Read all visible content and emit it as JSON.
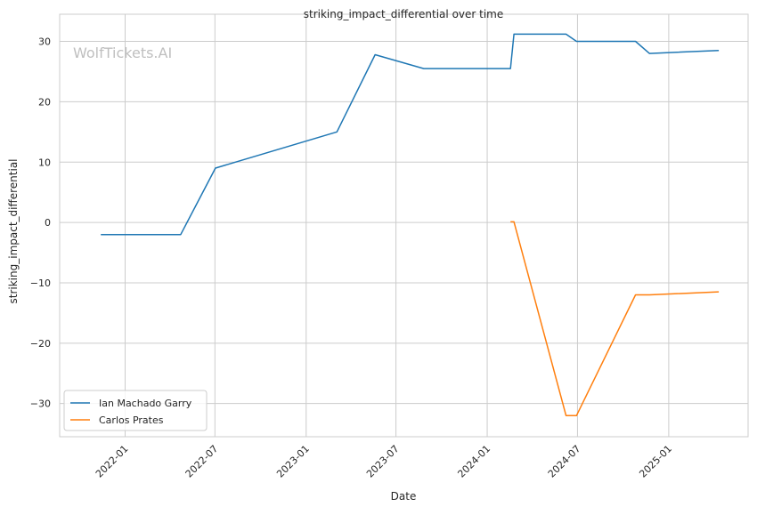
{
  "watermark": "WolfTickets.AI",
  "chart_data": {
    "type": "line",
    "title": "striking_impact_differential over time",
    "xlabel": "Date",
    "ylabel": "striking_impact_differential",
    "x_is_date": true,
    "xlim": [
      "2021-08-22",
      "2025-06-10"
    ],
    "ylim": [
      -35.5,
      34.5
    ],
    "x_ticks": [
      "2022-01",
      "2022-07",
      "2023-01",
      "2023-07",
      "2024-01",
      "2024-07",
      "2025-01"
    ],
    "y_ticks": [
      30,
      20,
      10,
      0,
      -10,
      -20,
      -30
    ],
    "y_tick_labels": [
      "30",
      "20",
      "10",
      "0",
      "−10",
      "−20",
      "−30"
    ],
    "grid": true,
    "legend_position": "lower-left",
    "series": [
      {
        "name": "Ian Machado Garry",
        "color": "#1f77b4",
        "points": [
          [
            "2021-11-13",
            -2
          ],
          [
            "2022-04-23",
            -2
          ],
          [
            "2022-07-02",
            9
          ],
          [
            "2023-03-04",
            15
          ],
          [
            "2023-05-20",
            27.8
          ],
          [
            "2023-08-26",
            25.5
          ],
          [
            "2024-02-17",
            25.5
          ],
          [
            "2024-02-24",
            31.2
          ],
          [
            "2024-06-08",
            31.2
          ],
          [
            "2024-06-29",
            30
          ],
          [
            "2024-10-26",
            30
          ],
          [
            "2024-11-23",
            28
          ],
          [
            "2025-04-12",
            28.5
          ]
        ]
      },
      {
        "name": "Carlos Prates",
        "color": "#ff7f0e",
        "points": [
          [
            "2024-02-17",
            0.1
          ],
          [
            "2024-02-24",
            0.1
          ],
          [
            "2024-06-08",
            -32
          ],
          [
            "2024-06-29",
            -32
          ],
          [
            "2024-10-26",
            -12
          ],
          [
            "2024-11-23",
            -12
          ],
          [
            "2025-04-12",
            -11.5
          ]
        ]
      }
    ]
  }
}
